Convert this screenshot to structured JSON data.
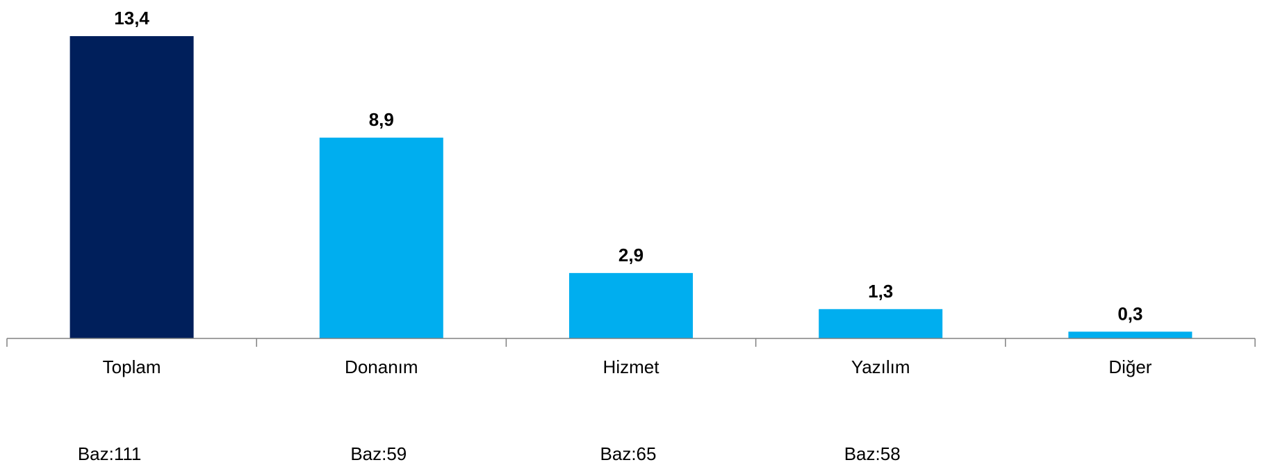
{
  "chart_data": {
    "type": "bar",
    "categories": [
      "Toplam",
      "Donanım",
      "Hizmet",
      "Yazılım",
      "Diğer"
    ],
    "values": [
      13.4,
      8.9,
      2.9,
      1.3,
      0.3
    ],
    "value_labels": [
      "13,4",
      "8,9",
      "2,9",
      "1,3",
      "0,3"
    ],
    "base_labels": [
      "Baz:111",
      "Baz:59",
      "Baz:65",
      "Baz:58",
      ""
    ],
    "bar_colors": [
      "#001f5b",
      "#00aeef",
      "#00aeef",
      "#00aeef",
      "#00aeef"
    ],
    "title": "",
    "xlabel": "",
    "ylabel": "",
    "ylim": [
      0,
      13.4
    ],
    "grid": false,
    "legend": "none"
  },
  "colors": {
    "axis": "#808080",
    "text": "#000000"
  }
}
